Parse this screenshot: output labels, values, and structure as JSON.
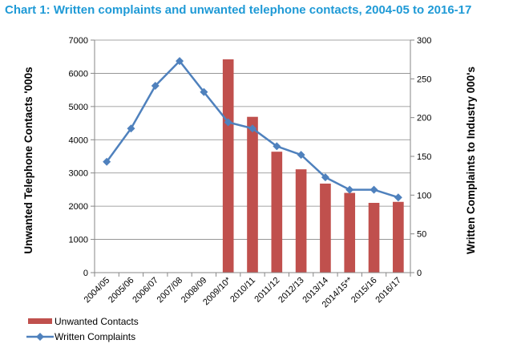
{
  "chart_data": {
    "type": "bar+line",
    "title": "Chart 1: Written complaints and unwanted telephone contacts, 2004-05 to 2016-17",
    "categories": [
      "2004/05",
      "2005/06",
      "2006/07",
      "2007/08",
      "2008/09",
      "2009/10*",
      "2010/11",
      "2011/12",
      "2012/13",
      "2013/14",
      "2014/15**",
      "2015/16",
      "2016/17"
    ],
    "series": [
      {
        "name": "Unwanted Contacts",
        "type": "bar",
        "axis": "left",
        "color": "#c0504d",
        "values": [
          null,
          null,
          null,
          null,
          null,
          6420,
          4690,
          3640,
          3110,
          2680,
          2400,
          2100,
          2130
        ]
      },
      {
        "name": "Written Complaints",
        "type": "line",
        "axis": "right",
        "color": "#4f81bd",
        "marker": "diamond",
        "values": [
          143,
          186,
          241,
          273,
          233,
          194,
          186,
          163,
          152,
          123,
          107,
          107,
          97
        ]
      }
    ],
    "ylabel": "Unwanted Telephone Contacts '000s",
    "y2label": "Written Complaints to Industry 000's",
    "ylim": [
      0,
      7000
    ],
    "y2lim": [
      0,
      300
    ],
    "yticks": [
      "0",
      "1000",
      "2000",
      "3000",
      "4000",
      "5000",
      "6000",
      "7000"
    ],
    "y2ticks": [
      "0",
      "50",
      "100",
      "150",
      "200",
      "250",
      "300"
    ],
    "grid": true,
    "legend": "bottom-left"
  }
}
